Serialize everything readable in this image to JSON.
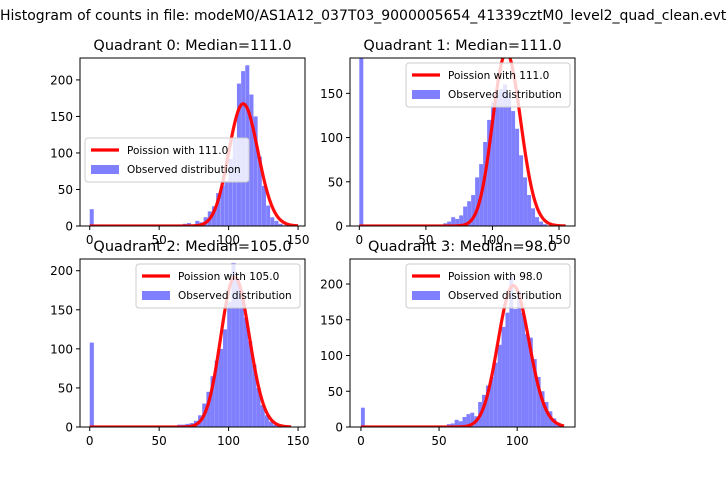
{
  "figure": {
    "suptitle": "Histogram of counts in file: modeM0/AS1A12_037T03_9000005654_41339cztM0_level2_quad_clean.evt"
  },
  "colors": {
    "poisson": "#ff0000",
    "observed": "#8080ff",
    "axes": "#000000"
  },
  "chart_data": [
    {
      "type": "bar",
      "title": "Quadrant 0: Median=111.0",
      "legend_location": "center-left",
      "xlim": [
        -7,
        155
      ],
      "ylim": [
        0,
        230
      ],
      "xticks": [
        0,
        50,
        100,
        150
      ],
      "yticks": [
        0,
        50,
        100,
        150,
        200
      ],
      "series": [
        {
          "name": "Poission with 111.0",
          "kind": "line",
          "lambda": 111.0,
          "x_range": [
            0,
            150
          ]
        },
        {
          "name": "Observed distribution",
          "kind": "histogram",
          "bin_width": 2.9,
          "bins": [
            [
              0,
              23
            ],
            [
              2.9,
              1
            ],
            [
              64,
              2
            ],
            [
              67,
              3
            ],
            [
              70,
              4
            ],
            [
              73,
              2
            ],
            [
              76,
              7
            ],
            [
              79,
              5
            ],
            [
              82,
              12
            ],
            [
              85,
              20
            ],
            [
              88,
              27
            ],
            [
              91,
              45
            ],
            [
              94,
              55
            ],
            [
              97,
              62
            ],
            [
              100,
              92
            ],
            [
              103,
              120
            ],
            [
              106,
              195
            ],
            [
              109,
              212
            ],
            [
              112,
              220
            ],
            [
              115,
              180
            ],
            [
              118,
              150
            ],
            [
              121,
              95
            ],
            [
              124,
              55
            ],
            [
              127,
              28
            ],
            [
              130,
              12
            ],
            [
              133,
              7
            ],
            [
              136,
              3
            ],
            [
              139,
              1
            ]
          ]
        }
      ]
    },
    {
      "type": "bar",
      "title": "Quadrant 1: Median=111.0",
      "legend_location": "top-right",
      "xlim": [
        -7,
        162
      ],
      "ylim": [
        0,
        190
      ],
      "xticks": [
        0,
        50,
        100,
        150
      ],
      "yticks": [
        0,
        50,
        100,
        150
      ],
      "series": [
        {
          "name": "Poission with 111.0",
          "kind": "line",
          "lambda": 111.0,
          "x_range": [
            0,
            155
          ]
        },
        {
          "name": "Observed distribution",
          "kind": "histogram",
          "bin_width": 3.0,
          "bins": [
            [
              0,
              190
            ],
            [
              3,
              1
            ],
            [
              63,
              3
            ],
            [
              66,
              5
            ],
            [
              69,
              10
            ],
            [
              72,
              8
            ],
            [
              75,
              12
            ],
            [
              78,
              22
            ],
            [
              81,
              28
            ],
            [
              84,
              35
            ],
            [
              87,
              55
            ],
            [
              90,
              70
            ],
            [
              93,
              95
            ],
            [
              96,
              120
            ],
            [
              99,
              140
            ],
            [
              102,
              150
            ],
            [
              105,
              155
            ],
            [
              108,
              160
            ],
            [
              111,
              150
            ],
            [
              114,
              130
            ],
            [
              117,
              110
            ],
            [
              120,
              80
            ],
            [
              123,
              55
            ],
            [
              126,
              35
            ],
            [
              129,
              20
            ],
            [
              132,
              10
            ],
            [
              135,
              5
            ],
            [
              138,
              2
            ]
          ]
        }
      ]
    },
    {
      "type": "bar",
      "title": "Quadrant 2: Median=105.0",
      "legend_location": "top-right",
      "xlim": [
        -7,
        155
      ],
      "ylim": [
        0,
        215
      ],
      "xticks": [
        0,
        50,
        100,
        150
      ],
      "yticks": [
        0,
        50,
        100,
        150,
        200
      ],
      "series": [
        {
          "name": "Poission with 105.0",
          "kind": "line",
          "lambda": 105.0,
          "x_range": [
            0,
            145
          ]
        },
        {
          "name": "Observed distribution",
          "kind": "histogram",
          "bin_width": 3.0,
          "bins": [
            [
              0,
              108
            ],
            [
              60,
              1
            ],
            [
              63,
              3
            ],
            [
              66,
              3
            ],
            [
              69,
              4
            ],
            [
              72,
              5
            ],
            [
              75,
              8
            ],
            [
              78,
              15
            ],
            [
              81,
              30
            ],
            [
              84,
              45
            ],
            [
              87,
              65
            ],
            [
              90,
              85
            ],
            [
              93,
              100
            ],
            [
              96,
              125
            ],
            [
              99,
              160
            ],
            [
              102,
              210
            ],
            [
              105,
              190
            ],
            [
              108,
              175
            ],
            [
              111,
              140
            ],
            [
              114,
              110
            ],
            [
              117,
              80
            ],
            [
              120,
              50
            ],
            [
              123,
              28
            ],
            [
              126,
              15
            ],
            [
              129,
              7
            ],
            [
              132,
              3
            ],
            [
              135,
              1
            ]
          ]
        }
      ]
    },
    {
      "type": "bar",
      "title": "Quadrant 3: Median=98.0",
      "legend_location": "top-right",
      "xlim": [
        -7,
        137
      ],
      "ylim": [
        0,
        235
      ],
      "xticks": [
        0,
        50,
        100
      ],
      "yticks": [
        0,
        50,
        100,
        150,
        200
      ],
      "series": [
        {
          "name": "Poission with 98.0",
          "kind": "line",
          "lambda": 98.0,
          "x_range": [
            0,
            130
          ]
        },
        {
          "name": "Observed distribution",
          "kind": "histogram",
          "bin_width": 2.5,
          "bins": [
            [
              0,
              27
            ],
            [
              2.5,
              2
            ],
            [
              50,
              2
            ],
            [
              55,
              4
            ],
            [
              57.5,
              5
            ],
            [
              60,
              10
            ],
            [
              62.5,
              8
            ],
            [
              65,
              14
            ],
            [
              67.5,
              18
            ],
            [
              70,
              20
            ],
            [
              72.5,
              15
            ],
            [
              75,
              35
            ],
            [
              77.5,
              45
            ],
            [
              80,
              58
            ],
            [
              82.5,
              70
            ],
            [
              85,
              90
            ],
            [
              87.5,
              115
            ],
            [
              90,
              140
            ],
            [
              92.5,
              160
            ],
            [
              95,
              210
            ],
            [
              97.5,
              165
            ],
            [
              100,
              190
            ],
            [
              102.5,
              160
            ],
            [
              105,
              130
            ],
            [
              107.5,
              125
            ],
            [
              110,
              95
            ],
            [
              112.5,
              70
            ],
            [
              115,
              50
            ],
            [
              117.5,
              35
            ],
            [
              120,
              22
            ],
            [
              122.5,
              12
            ],
            [
              125,
              6
            ],
            [
              127.5,
              3
            ]
          ]
        }
      ]
    }
  ]
}
